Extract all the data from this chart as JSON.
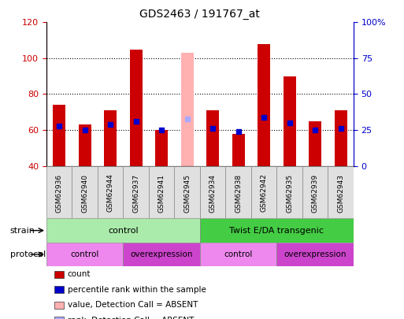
{
  "title": "GDS2463 / 191767_at",
  "samples": [
    "GSM62936",
    "GSM62940",
    "GSM62944",
    "GSM62937",
    "GSM62941",
    "GSM62945",
    "GSM62934",
    "GSM62938",
    "GSM62942",
    "GSM62935",
    "GSM62939",
    "GSM62943"
  ],
  "bar_heights": [
    74,
    63,
    71,
    105,
    60,
    103,
    71,
    58,
    108,
    90,
    65,
    71
  ],
  "rank_values": [
    62,
    60,
    63,
    65,
    60,
    66,
    61,
    59,
    67,
    64,
    60,
    61
  ],
  "absent_bar": [
    5
  ],
  "bar_color": "#cc0000",
  "absent_bar_color": "#ffb0b0",
  "rank_color": "#0000cc",
  "absent_rank_color": "#aaaaff",
  "ylim_left": [
    40,
    120
  ],
  "ylim_right": [
    0,
    100
  ],
  "yticks_left": [
    40,
    60,
    80,
    100,
    120
  ],
  "yticks_right": [
    0,
    25,
    50,
    75,
    100
  ],
  "ytick_right_labels": [
    "0",
    "25",
    "50",
    "75",
    "100%"
  ],
  "hlines": [
    60,
    80,
    100
  ],
  "strain_groups": [
    {
      "label": "control",
      "start": 0,
      "end": 6,
      "color": "#aaeaaa"
    },
    {
      "label": "Twist E/DA transgenic",
      "start": 6,
      "end": 12,
      "color": "#44cc44"
    }
  ],
  "protocol_groups": [
    {
      "label": "control",
      "start": 0,
      "end": 3,
      "color": "#ee88ee"
    },
    {
      "label": "overexpression",
      "start": 3,
      "end": 6,
      "color": "#cc44cc"
    },
    {
      "label": "control",
      "start": 6,
      "end": 9,
      "color": "#ee88ee"
    },
    {
      "label": "overexpression",
      "start": 9,
      "end": 12,
      "color": "#cc44cc"
    }
  ],
  "legend_items": [
    {
      "label": "count",
      "color": "#cc0000",
      "marker": "square"
    },
    {
      "label": "percentile rank within the sample",
      "color": "#0000cc",
      "marker": "square"
    },
    {
      "label": "value, Detection Call = ABSENT",
      "color": "#ffb0b0",
      "marker": "square"
    },
    {
      "label": "rank, Detection Call = ABSENT",
      "color": "#aaaaff",
      "marker": "square"
    }
  ],
  "bar_width": 0.5,
  "rank_marker_size": 5,
  "title_color": "#000000",
  "left_axis_color": "#cc0000",
  "right_axis_color": "#0000cc"
}
